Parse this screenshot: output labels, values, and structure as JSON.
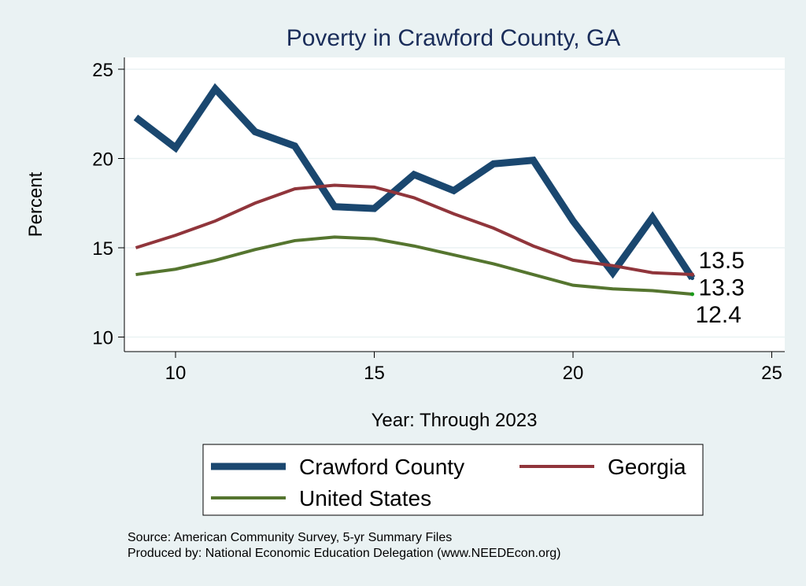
{
  "chart_data": {
    "type": "line",
    "title": "Poverty in Crawford County, GA",
    "xlabel": "Year: Through 2023",
    "ylabel": "Percent",
    "xlim": [
      8.7,
      25.3
    ],
    "ylim": [
      9.2,
      25.6
    ],
    "xticks": [
      10,
      15,
      20,
      25
    ],
    "yticks": [
      10,
      15,
      20,
      25
    ],
    "grid": true,
    "legend_position": "bottom",
    "x": [
      9,
      10,
      11,
      12,
      13,
      14,
      15,
      16,
      17,
      18,
      19,
      20,
      21,
      22,
      23
    ],
    "series": [
      {
        "name": "Crawford County",
        "color": "#1a476f",
        "width": 9,
        "values": [
          22.3,
          20.6,
          23.9,
          21.5,
          20.7,
          17.3,
          17.2,
          19.1,
          18.2,
          19.7,
          19.9,
          16.5,
          13.6,
          16.7,
          13.3
        ],
        "end_label": "13.3"
      },
      {
        "name": "Georgia",
        "color": "#90353b",
        "width": 4,
        "values": [
          15.0,
          15.7,
          16.5,
          17.5,
          18.3,
          18.5,
          18.4,
          17.8,
          16.9,
          16.1,
          15.1,
          14.3,
          14.0,
          13.6,
          13.5
        ],
        "end_label": "13.5"
      },
      {
        "name": "United States",
        "color": "#55752f",
        "width": 4,
        "values": [
          13.5,
          13.8,
          14.3,
          14.9,
          15.4,
          15.6,
          15.5,
          15.1,
          14.6,
          14.1,
          13.5,
          12.9,
          12.7,
          12.6,
          12.4
        ],
        "end_label": "12.4"
      }
    ]
  },
  "notes": {
    "source": "Source: American Community Survey, 5-yr Summary Files",
    "produced": "Produced by: National Economic Education Delegation (www.NEEDEcon.org)"
  }
}
